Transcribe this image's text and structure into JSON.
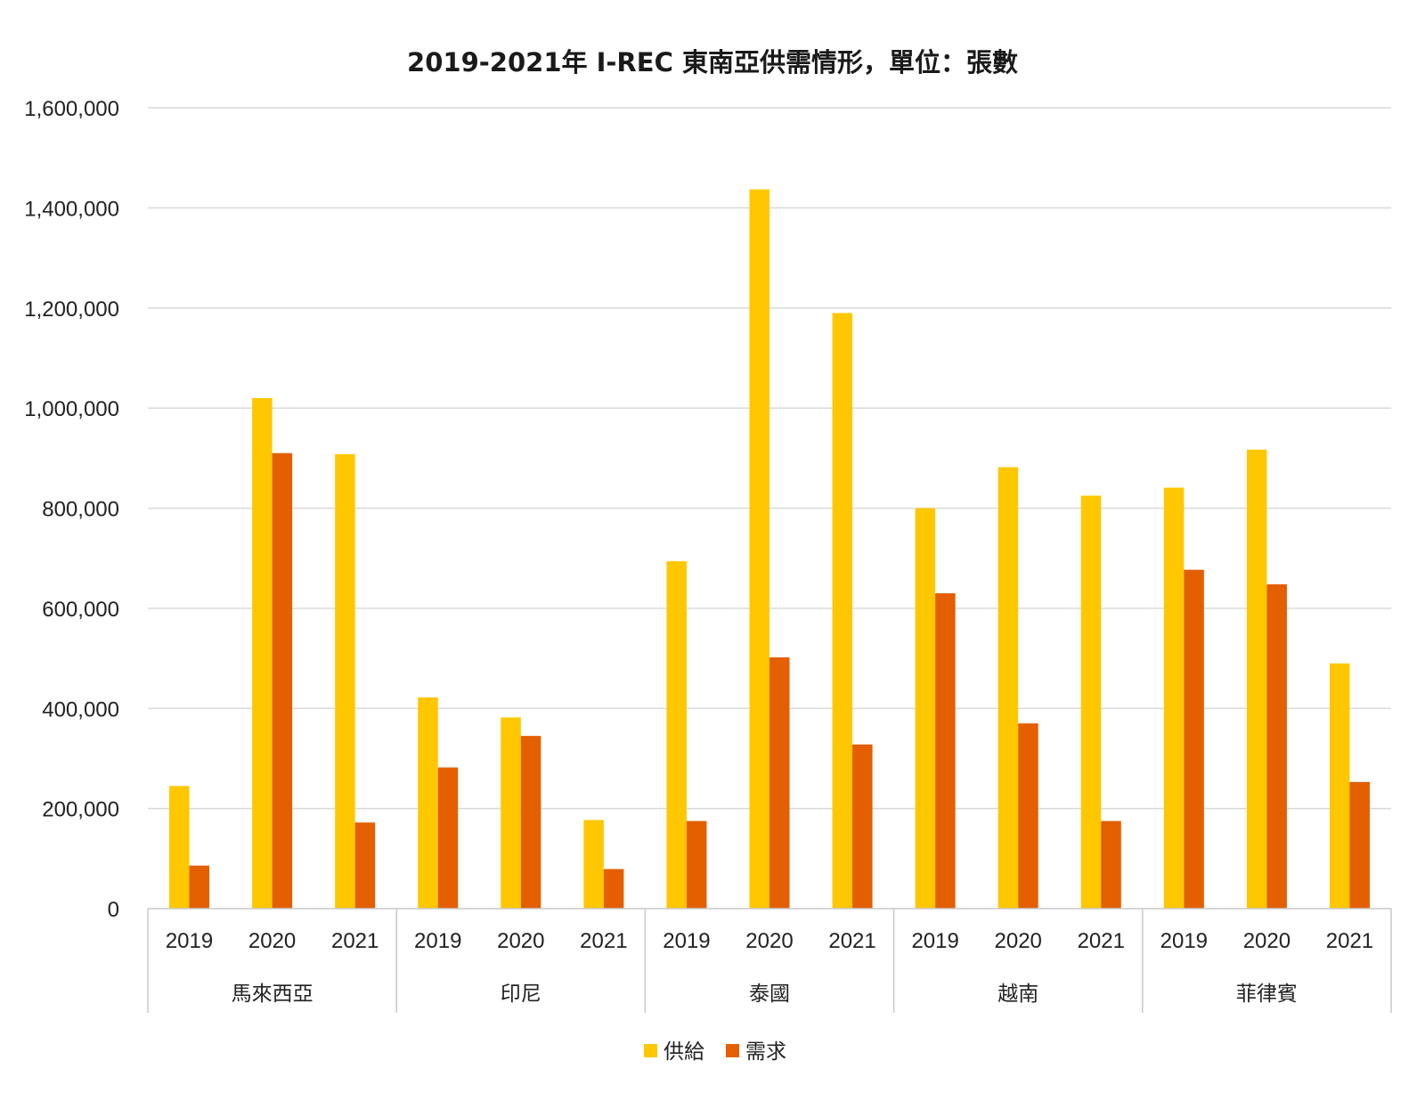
{
  "chart_data": {
    "type": "bar",
    "title": "2019-2021年 I-REC 東南亞供需情形，單位：張數",
    "ylim": [
      0,
      1600000
    ],
    "ytick_labels": [
      "0",
      "200,000",
      "400,000",
      "600,000",
      "800,000",
      "1,000,000",
      "1,200,000",
      "1,400,000",
      "1,600,000"
    ],
    "groups": [
      "馬來西亞",
      "印尼",
      "泰國",
      "越南",
      "菲律賓"
    ],
    "years": [
      "2019",
      "2020",
      "2021"
    ],
    "categories": [
      "馬來西亞 2019",
      "馬來西亞 2020",
      "馬來西亞 2021",
      "印尼 2019",
      "印尼 2020",
      "印尼 2021",
      "泰國 2019",
      "泰國 2020",
      "泰國 2021",
      "越南 2019",
      "越南 2020",
      "越南 2021",
      "菲律賓 2019",
      "菲律賓 2020",
      "菲律賓 2021"
    ],
    "series": [
      {
        "name": "供給",
        "color": "#FFC700",
        "values": [
          245000,
          1020000,
          908000,
          422000,
          382000,
          177000,
          694000,
          1437000,
          1190000,
          800000,
          882000,
          825000,
          841000,
          917000,
          490000
        ]
      },
      {
        "name": "需求",
        "color": "#E35F00",
        "values": [
          86000,
          910000,
          172000,
          282000,
          345000,
          79000,
          175000,
          502000,
          328000,
          630000,
          370000,
          175000,
          677000,
          648000,
          253000
        ]
      }
    ],
    "grid": true,
    "legend_position": "bottom-center"
  }
}
